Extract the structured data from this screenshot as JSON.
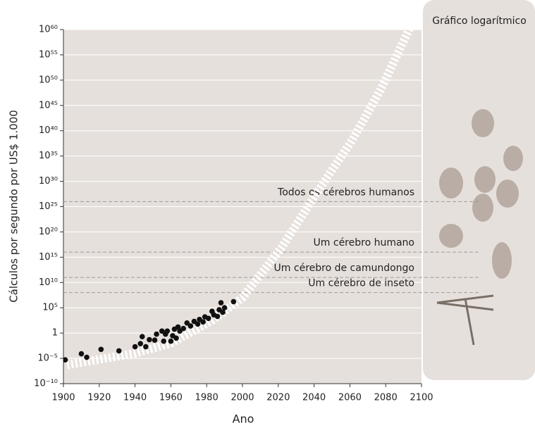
{
  "chart_data": {
    "type": "scatter",
    "x_label": "Ano",
    "y_label": "Cálculos por segundo por US$ 1.000",
    "panel_title": "Gráfico logarítmico",
    "xlim": [
      1900,
      2100
    ],
    "xticks": [
      1900,
      1920,
      1940,
      1960,
      1980,
      2000,
      2020,
      2040,
      2060,
      2080,
      2100
    ],
    "ylim": [
      1e-10,
      1e+60
    ],
    "log_y": true,
    "grid": true,
    "yticks": [
      {
        "value": 1e-10,
        "label": "10⁻¹⁰"
      },
      {
        "value": 1e-05,
        "label": "10⁻⁵"
      },
      1,
      {
        "value": 100000.0,
        "label": "10⁵"
      },
      {
        "value": 10000000000.0,
        "label": "10¹⁰"
      },
      {
        "value": 1000000000000000.0,
        "label": "10¹⁵"
      },
      {
        "value": 1e+20,
        "label": "10²⁰"
      },
      {
        "value": 1e+25,
        "label": "10²⁵"
      },
      {
        "value": 1e+30,
        "label": "10³⁰"
      },
      {
        "value": 1e+35,
        "label": "10³⁵"
      },
      {
        "value": 1e+40,
        "label": "10⁴⁰"
      },
      {
        "value": 1e+45,
        "label": "10⁴⁵"
      },
      {
        "value": 1e+50,
        "label": "10⁵⁰"
      },
      {
        "value": 1e+55,
        "label": "10⁵⁵"
      },
      {
        "value": 1e+60,
        "label": "10⁶⁰"
      }
    ],
    "series": [
      {
        "type": "scatter",
        "color": "#111111",
        "x": [
          1901,
          1910,
          1913,
          1921,
          1931,
          1940,
          1943,
          1944,
          1946,
          1948,
          1951,
          1952,
          1955,
          1956,
          1957,
          1958,
          1960,
          1961,
          1962,
          1963,
          1964,
          1965,
          1967,
          1969,
          1971,
          1973,
          1975,
          1976,
          1978,
          1979,
          1981,
          1983,
          1984,
          1986,
          1987,
          1988,
          1989,
          1990,
          1995
        ],
        "values": [
          5e-06,
          8e-05,
          1.6e-05,
          0.0006,
          0.0003,
          0.002,
          0.008,
          0.2,
          0.002,
          0.05,
          0.04,
          0.6,
          2.5,
          0.025,
          0.6,
          2.5,
          0.025,
          0.3,
          6,
          0.1,
          16,
          2.5,
          8,
          100,
          25,
          200,
          60,
          500,
          160,
          1600,
          800,
          20000,
          4000,
          2000,
          40000,
          1000000,
          13000,
          100000,
          1600000
        ]
      },
      {
        "type": "line",
        "color": "#ffffff",
        "x": [
          1902,
          1940,
          1960,
          1983,
          2000,
          2022,
          2042,
          2061,
          2077,
          2093,
          2100
        ],
        "values": [
          5e-07,
          0.0001,
          0.01,
          300,
          10000000.0,
          1e+17,
          1e+28,
          1e+38,
          1e+48,
          1e+60,
          1e+64
        ]
      }
    ],
    "annotations": [
      {
        "text": "Todos os cérebros humanos",
        "value": 1e+26
      },
      {
        "text": "Um cérebro humano",
        "value": 1e+16
      },
      {
        "text": "Um cérebro de camundongo",
        "value": 100000000000.0
      },
      {
        "text": "Um cérebro de inseto",
        "value": 100000000.0
      }
    ]
  }
}
